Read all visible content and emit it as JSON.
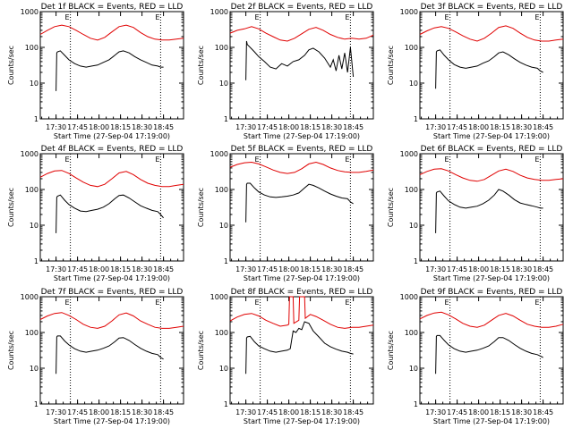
{
  "colors": {
    "events": "#000000",
    "lld": "#e00000",
    "axis": "#000000",
    "background": "#ffffff"
  },
  "chart_data": {
    "type": "line",
    "layout": "3x3 grid of panels",
    "yscale": "log",
    "ylim": [
      1,
      1000
    ],
    "ytick_labels": [
      "1",
      "10",
      "100",
      "1000"
    ],
    "ylabel": "Counts/sec",
    "xlabel": "Start Time (27-Sep-04 17:19:00)",
    "xlim_minutes_after_start": [
      0,
      100
    ],
    "xtick_labels": [
      "17:30",
      "17:45",
      "18:00",
      "18:15",
      "18:30",
      "18:45"
    ],
    "xtick_minutes_after_start": [
      11,
      26,
      41,
      56,
      71,
      86
    ],
    "vertical_marker_lines_minutes_after_start": [
      21,
      84
    ],
    "marker_labels": [
      "E",
      "E"
    ],
    "series_colors": {
      "Events": "#000000",
      "LLD": "#e00000"
    },
    "panels": [
      {
        "title": "Det 1f BLACK = Events, RED = LLD",
        "series": [
          {
            "name": "LLD",
            "x": [
              0,
              5,
              10,
              15,
              20,
              25,
              30,
              35,
              40,
              45,
              50,
              55,
              60,
              65,
              70,
              75,
              80,
              85,
              90,
              95,
              100
            ],
            "y": [
              230,
              300,
              380,
              420,
              380,
              300,
              230,
              180,
              160,
              190,
              270,
              380,
              420,
              360,
              260,
              200,
              170,
              160,
              160,
              170,
              180
            ]
          },
          {
            "name": "Events",
            "x": [
              11,
              11.5,
              12,
              14,
              17,
              20,
              24,
              28,
              32,
              36,
              40,
              44,
              48,
              52,
              55,
              58,
              62,
              66,
              70,
              74,
              78,
              82,
              84,
              86
            ],
            "y": [
              6,
              70,
              75,
              80,
              60,
              45,
              35,
              30,
              28,
              30,
              32,
              38,
              45,
              60,
              75,
              80,
              70,
              55,
              45,
              38,
              32,
              30,
              28,
              28
            ]
          }
        ]
      },
      {
        "title": "Det 2f BLACK = Events, RED = LLD",
        "series": [
          {
            "name": "LLD",
            "x": [
              0,
              5,
              10,
              15,
              20,
              25,
              30,
              35,
              40,
              45,
              50,
              55,
              60,
              65,
              70,
              75,
              80,
              85,
              90,
              95,
              100
            ],
            "y": [
              250,
              300,
              330,
              380,
              330,
              250,
              200,
              160,
              150,
              180,
              240,
              320,
              360,
              300,
              230,
              190,
              170,
              180,
              170,
              180,
              220
            ]
          },
          {
            "name": "Events",
            "x": [
              11,
              11.5,
              12,
              14,
              17,
              20,
              24,
              28,
              32,
              36,
              40,
              44,
              48,
              52,
              55,
              58,
              62,
              66,
              70,
              72,
              74,
              76,
              78,
              80,
              82,
              84,
              86
            ],
            "y": [
              12,
              150,
              120,
              100,
              75,
              55,
              40,
              28,
              25,
              35,
              30,
              40,
              45,
              60,
              85,
              95,
              75,
              50,
              28,
              45,
              22,
              60,
              25,
              70,
              20,
              100,
              15
            ]
          }
        ]
      },
      {
        "title": "Det 3f BLACK = Events, RED = LLD",
        "series": [
          {
            "name": "LLD",
            "x": [
              0,
              5,
              10,
              15,
              20,
              25,
              30,
              35,
              40,
              45,
              50,
              55,
              60,
              65,
              70,
              75,
              80,
              85,
              90,
              95,
              100
            ],
            "y": [
              230,
              290,
              350,
              380,
              340,
              270,
              210,
              170,
              150,
              180,
              250,
              360,
              400,
              340,
              250,
              190,
              160,
              150,
              150,
              160,
              170
            ]
          },
          {
            "name": "Events",
            "x": [
              11,
              11.5,
              12,
              14,
              17,
              20,
              24,
              28,
              32,
              36,
              40,
              44,
              48,
              52,
              55,
              58,
              62,
              66,
              70,
              74,
              78,
              82,
              84,
              86
            ],
            "y": [
              7,
              75,
              80,
              85,
              60,
              45,
              33,
              28,
              26,
              28,
              30,
              36,
              42,
              55,
              70,
              75,
              62,
              48,
              38,
              32,
              28,
              26,
              22,
              20
            ]
          }
        ]
      },
      {
        "title": "Det 4f BLACK = Events, RED = LLD",
        "series": [
          {
            "name": "LLD",
            "x": [
              0,
              5,
              10,
              15,
              20,
              25,
              30,
              35,
              40,
              45,
              50,
              55,
              60,
              65,
              70,
              75,
              80,
              85,
              90,
              95,
              100
            ],
            "y": [
              220,
              280,
              330,
              340,
              280,
              210,
              160,
              130,
              120,
              140,
              200,
              290,
              320,
              260,
              190,
              150,
              130,
              120,
              120,
              130,
              140
            ]
          },
          {
            "name": "Events",
            "x": [
              11,
              11.5,
              12,
              14,
              17,
              20,
              24,
              28,
              32,
              36,
              40,
              44,
              48,
              52,
              55,
              58,
              62,
              66,
              70,
              74,
              78,
              82,
              84,
              86
            ],
            "y": [
              6,
              60,
              65,
              70,
              50,
              38,
              30,
              25,
              24,
              26,
              28,
              32,
              40,
              55,
              68,
              70,
              58,
              45,
              35,
              30,
              26,
              24,
              20,
              16
            ]
          }
        ]
      },
      {
        "title": "Det 5f BLACK = Events, RED = LLD",
        "series": [
          {
            "name": "LLD",
            "x": [
              0,
              5,
              10,
              15,
              20,
              25,
              30,
              35,
              40,
              45,
              50,
              55,
              60,
              65,
              70,
              75,
              80,
              85,
              90,
              95,
              100
            ],
            "y": [
              420,
              500,
              560,
              580,
              520,
              430,
              350,
              300,
              280,
              300,
              380,
              520,
              580,
              500,
              400,
              340,
              310,
              300,
              300,
              320,
              350
            ]
          },
          {
            "name": "Events",
            "x": [
              11,
              11.5,
              12,
              14,
              17,
              20,
              24,
              28,
              32,
              36,
              40,
              44,
              48,
              52,
              55,
              58,
              62,
              66,
              70,
              74,
              78,
              82,
              84,
              86
            ],
            "y": [
              12,
              140,
              150,
              150,
              110,
              85,
              70,
              62,
              60,
              62,
              65,
              70,
              80,
              110,
              140,
              130,
              110,
              90,
              75,
              65,
              58,
              55,
              45,
              40
            ]
          }
        ]
      },
      {
        "title": "Det 6f BLACK = Events, RED = LLD",
        "series": [
          {
            "name": "LLD",
            "x": [
              0,
              5,
              10,
              15,
              20,
              25,
              30,
              35,
              40,
              45,
              50,
              55,
              60,
              65,
              70,
              75,
              80,
              85,
              90,
              95,
              100
            ],
            "y": [
              260,
              320,
              370,
              380,
              330,
              260,
              210,
              180,
              170,
              190,
              250,
              330,
              370,
              320,
              250,
              210,
              190,
              180,
              180,
              190,
              200
            ]
          },
          {
            "name": "Events",
            "x": [
              11,
              11.5,
              12,
              14,
              17,
              20,
              24,
              28,
              32,
              36,
              40,
              44,
              48,
              52,
              55,
              58,
              62,
              66,
              70,
              74,
              78,
              82,
              84,
              86
            ],
            "y": [
              6,
              80,
              85,
              90,
              65,
              48,
              38,
              32,
              30,
              32,
              34,
              40,
              50,
              70,
              100,
              90,
              70,
              52,
              42,
              38,
              35,
              32,
              30,
              30
            ]
          }
        ]
      },
      {
        "title": "Det 7f BLACK = Events, RED = LLD",
        "series": [
          {
            "name": "LLD",
            "x": [
              0,
              5,
              10,
              15,
              20,
              25,
              30,
              35,
              40,
              45,
              50,
              55,
              60,
              65,
              70,
              75,
              80,
              85,
              90,
              95,
              100
            ],
            "y": [
              230,
              290,
              340,
              360,
              300,
              230,
              170,
              140,
              130,
              150,
              210,
              310,
              350,
              290,
              210,
              170,
              140,
              130,
              130,
              140,
              150
            ]
          },
          {
            "name": "Events",
            "x": [
              11,
              11.5,
              12,
              14,
              17,
              20,
              24,
              28,
              32,
              36,
              40,
              44,
              48,
              52,
              55,
              58,
              62,
              66,
              70,
              74,
              78,
              82,
              84,
              86
            ],
            "y": [
              7,
              75,
              80,
              80,
              58,
              45,
              35,
              30,
              28,
              30,
              32,
              36,
              42,
              55,
              70,
              72,
              60,
              46,
              36,
              30,
              26,
              24,
              20,
              18
            ]
          }
        ]
      },
      {
        "title": "Det 8f BLACK = Events, RED = LLD",
        "series": [
          {
            "name": "LLD",
            "x": [
              0,
              5,
              10,
              15,
              20,
              25,
              30,
              35,
              40,
              41,
              41.5,
              44,
              44.5,
              48,
              48.5,
              52,
              52.5,
              56,
              60,
              65,
              70,
              75,
              80,
              85,
              90,
              95,
              100
            ],
            "y": [
              210,
              270,
              320,
              340,
              290,
              220,
              180,
              150,
              160,
              170,
              1000,
              1000,
              180,
              220,
              1000,
              1000,
              250,
              320,
              280,
              220,
              170,
              140,
              130,
              140,
              140,
              150,
              160
            ]
          },
          {
            "name": "Events",
            "x": [
              11,
              11.5,
              12,
              14,
              17,
              20,
              24,
              28,
              32,
              36,
              40,
              42,
              44,
              46,
              48,
              50,
              52,
              55,
              58,
              62,
              66,
              70,
              74,
              78,
              82,
              84,
              86
            ],
            "y": [
              7,
              70,
              75,
              78,
              55,
              42,
              35,
              30,
              28,
              30,
              32,
              35,
              110,
              100,
              130,
              120,
              200,
              180,
              110,
              75,
              50,
              40,
              34,
              30,
              28,
              26,
              25
            ]
          }
        ]
      },
      {
        "title": "Det 9f BLACK = Events, RED = LLD",
        "series": [
          {
            "name": "LLD",
            "x": [
              0,
              5,
              10,
              15,
              20,
              25,
              30,
              35,
              40,
              45,
              50,
              55,
              60,
              65,
              70,
              75,
              80,
              85,
              90,
              95,
              100
            ],
            "y": [
              240,
              300,
              350,
              370,
              310,
              240,
              180,
              150,
              140,
              160,
              220,
              300,
              340,
              290,
              220,
              170,
              150,
              140,
              140,
              150,
              170
            ]
          },
          {
            "name": "Events",
            "x": [
              11,
              11.5,
              12,
              14,
              17,
              20,
              24,
              28,
              32,
              36,
              40,
              44,
              48,
              52,
              55,
              58,
              62,
              66,
              70,
              74,
              78,
              82,
              84,
              86
            ],
            "y": [
              7,
              78,
              82,
              82,
              60,
              45,
              35,
              30,
              28,
              30,
              32,
              36,
              42,
              56,
              72,
              72,
              60,
              46,
              36,
              30,
              26,
              24,
              22,
              20
            ]
          }
        ]
      }
    ]
  }
}
